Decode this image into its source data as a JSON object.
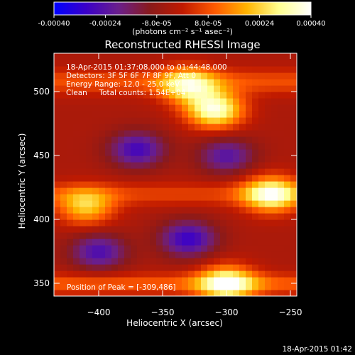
{
  "chart_data": {
    "type": "heatmap",
    "title": "Reconstructed RHESSI Image",
    "xlabel": "Heliocentric X (arcsec)",
    "ylabel": "Heliocentric Y (arcsec)",
    "xlim": [
      -435,
      -245
    ],
    "ylim": [
      340,
      530
    ],
    "x_ticks": [
      -400,
      -350,
      -300,
      -250
    ],
    "x_tick_labels": [
      "−400",
      "−350",
      "−300",
      "−250"
    ],
    "y_ticks": [
      350,
      400,
      450,
      500
    ],
    "y_tick_labels": [
      "350",
      "400",
      "450",
      "500"
    ],
    "info_lines": [
      "18-Apr-2015 01:37:08.000 to 01:44:48.000",
      "Detectors: 3F 5F 6F 7F 8F 9F, Att 0",
      "Energy Range: 12.0 - 25.0 keV",
      "Clean     Total counts: 1.54E+04"
    ],
    "peak_label": "Position of Peak = [-309,486]",
    "peak_position": [
      -309,
      486
    ],
    "colorbar": {
      "range": [
        -0.0004,
        0.0004
      ],
      "tick_labels": [
        "-0.00040",
        "-0.00024",
        "-8.0e-05",
        "8.0e-05",
        "0.00024",
        "0.00040"
      ],
      "unit_label": "(photons cm⁻² s⁻¹ asec⁻²)",
      "colors": [
        "#0000ff",
        "#3b00c8",
        "#6a1f8c",
        "#8a1a1a",
        "#c01a00",
        "#ff5a00",
        "#ffb400",
        "#ffff90",
        "#ffffff"
      ]
    },
    "bright_regions": [
      {
        "name": "upper band",
        "center": [
          -330,
          505
        ],
        "level": 0.0003
      },
      {
        "name": "upper peak",
        "center": [
          -309,
          486
        ],
        "level": 0.0004
      },
      {
        "name": "middle-right source",
        "center": [
          -265,
          420
        ],
        "level": 0.00036
      },
      {
        "name": "middle-left source",
        "center": [
          -410,
          410
        ],
        "level": 0.00026
      },
      {
        "name": "lower band",
        "center": [
          -300,
          350
        ],
        "level": 0.00036
      }
    ],
    "dim_regions": [
      {
        "name": "upper-middle trough",
        "center": [
          -370,
          455
        ],
        "level": -0.00024
      },
      {
        "name": "right-middle trough",
        "center": [
          -300,
          450
        ],
        "level": -0.0002
      },
      {
        "name": "lower-middle trough",
        "center": [
          -330,
          385
        ],
        "level": -0.00026
      },
      {
        "name": "lower-left trough",
        "center": [
          -400,
          375
        ],
        "level": -0.00022
      }
    ]
  },
  "footer": {
    "timestamp": "18-Apr-2015 01:42"
  }
}
